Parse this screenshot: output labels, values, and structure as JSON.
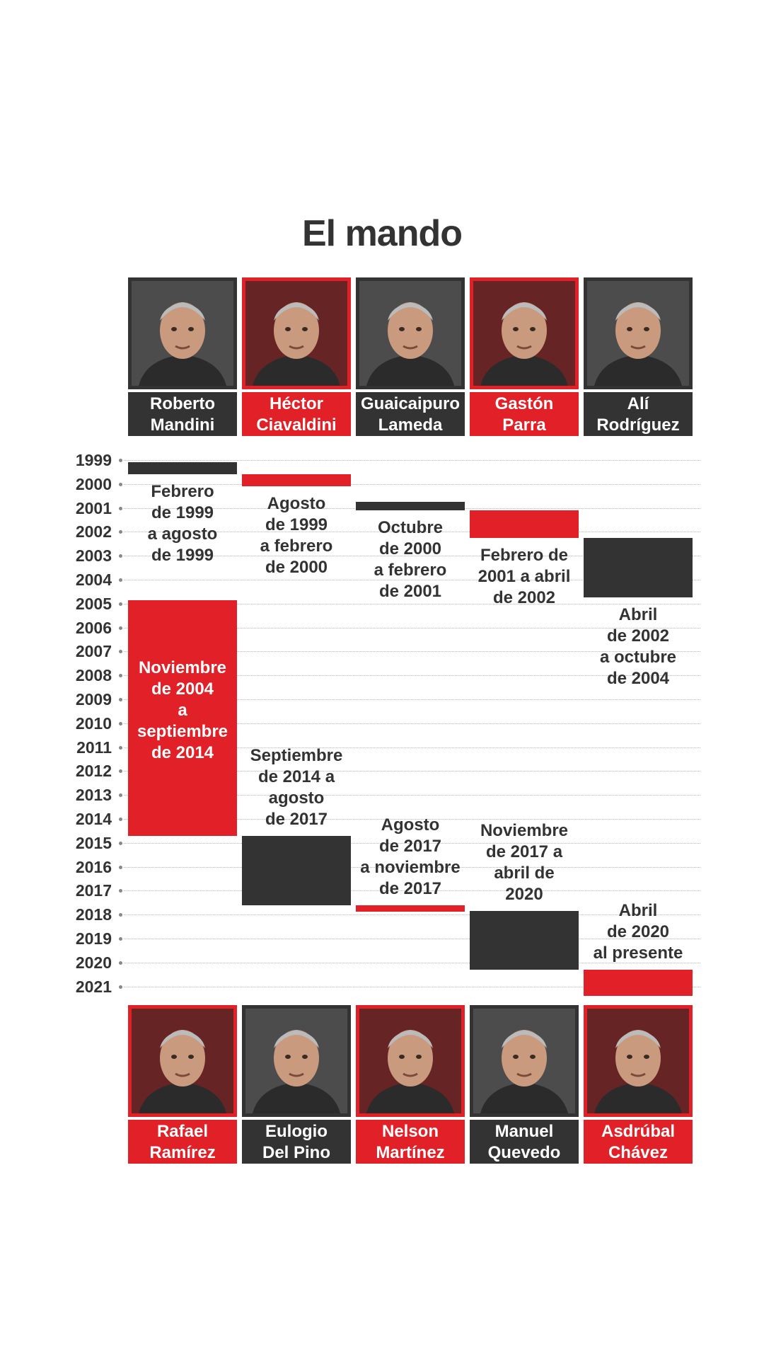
{
  "title": "El mando",
  "colors": {
    "red": "#e12127",
    "dark": "#333333"
  },
  "chart_data": {
    "type": "timeline",
    "title": "El mando",
    "y_ticks": [
      "1999",
      "2000",
      "2001",
      "2002",
      "2003",
      "2004",
      "2005",
      "2006",
      "2007",
      "2008",
      "2009",
      "2010",
      "2011",
      "2012",
      "2013",
      "2014",
      "2015",
      "2016",
      "2017",
      "2018",
      "2019",
      "2020",
      "2021"
    ],
    "ylim": [
      1999,
      2021
    ],
    "presidents": [
      {
        "name_line1": "Roberto",
        "name_line2": "Mandini",
        "row": "top",
        "col": 0,
        "color": "dark",
        "start": 1999.1,
        "end": 1999.6,
        "period": "Febrero\nde 1999\na agosto\nde 1999"
      },
      {
        "name_line1": "Héctor",
        "name_line2": "Ciavaldini",
        "row": "top",
        "col": 1,
        "color": "red",
        "start": 1999.6,
        "end": 2000.1,
        "period": "Agosto\nde 1999\na febrero\nde 2000"
      },
      {
        "name_line1": "Guaicaipuro",
        "name_line2": "Lameda",
        "row": "top",
        "col": 2,
        "color": "dark",
        "start": 2000.75,
        "end": 2001.1,
        "period": "Octubre\nde 2000\na febrero\nde 2001"
      },
      {
        "name_line1": "Gastón",
        "name_line2": "Parra",
        "row": "top",
        "col": 3,
        "color": "red",
        "start": 2001.1,
        "end": 2002.25,
        "period": "Febrero de\n2001 a abril\nde 2002"
      },
      {
        "name_line1": "Alí",
        "name_line2": "Rodríguez",
        "row": "top",
        "col": 4,
        "color": "dark",
        "start": 2002.25,
        "end": 2004.75,
        "period": "Abril\nde 2002\na octubre\nde 2004"
      },
      {
        "name_line1": "Rafael",
        "name_line2": "Ramírez",
        "row": "bottom",
        "col": 0,
        "color": "red",
        "start": 2004.85,
        "end": 2014.7,
        "period": "Noviembre\nde 2004\na\nseptiembre\nde 2014",
        "inside": true
      },
      {
        "name_line1": "Eulogio",
        "name_line2": "Del Pino",
        "row": "bottom",
        "col": 1,
        "color": "dark",
        "start": 2014.7,
        "end": 2017.6,
        "period": "Septiembre\nde 2014 a\nagosto\nde 2017"
      },
      {
        "name_line1": "Nelson",
        "name_line2": "Martínez",
        "row": "bottom",
        "col": 2,
        "color": "red",
        "start": 2017.6,
        "end": 2017.85,
        "period": "Agosto\nde 2017\na noviembre\nde 2017"
      },
      {
        "name_line1": "Manuel",
        "name_line2": "Quevedo",
        "row": "bottom",
        "col": 3,
        "color": "dark",
        "start": 2017.85,
        "end": 2020.3,
        "period": "Noviembre\nde 2017 a\nabril de\n2020"
      },
      {
        "name_line1": "Asdrúbal",
        "name_line2": "Chávez",
        "row": "bottom",
        "col": 4,
        "color": "red",
        "start": 2020.3,
        "end": 2021.4,
        "period": "Abril\nde 2020\nal presente"
      }
    ]
  }
}
